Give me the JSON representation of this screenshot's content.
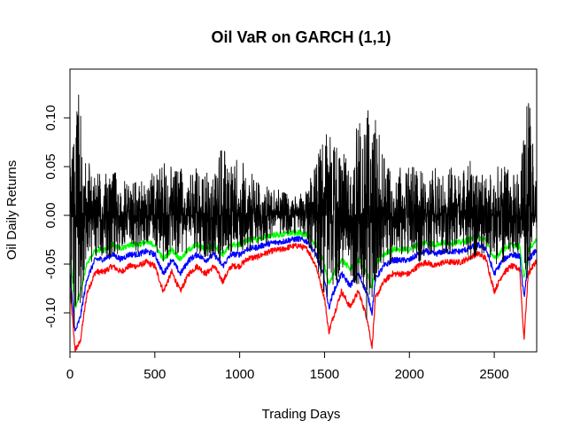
{
  "chart_data": {
    "type": "line",
    "title": "Oil VaR on GARCH (1,1)",
    "xlabel": "Trading Days",
    "ylabel": "Oil Daily Returns",
    "xlim": [
      0,
      2750
    ],
    "ylim": [
      -0.14,
      0.15
    ],
    "x_ticks": [
      0,
      500,
      1000,
      1500,
      2000,
      2500
    ],
    "x_tick_labels": [
      "0",
      "500",
      "1000",
      "1500",
      "2000",
      "2500"
    ],
    "y_ticks": [
      -0.1,
      -0.05,
      0.0,
      0.05,
      0.1
    ],
    "y_tick_labels": [
      "-0.10",
      "-0.05",
      "0.00",
      "0.05",
      "0.10"
    ],
    "grid": false,
    "legend": "none",
    "n_observations": 2750,
    "series": [
      {
        "role": "returns",
        "color": "#000000",
        "x": [
          0,
          50,
          100,
          150,
          200,
          250,
          300,
          350,
          400,
          450,
          500,
          550,
          600,
          650,
          700,
          750,
          800,
          850,
          900,
          950,
          1000,
          1050,
          1100,
          1150,
          1200,
          1250,
          1300,
          1350,
          1400,
          1450,
          1500,
          1550,
          1600,
          1650,
          1700,
          1750,
          1800,
          1850,
          1900,
          1950,
          2000,
          2050,
          2100,
          2150,
          2200,
          2250,
          2300,
          2350,
          2400,
          2450,
          2500,
          2550,
          2600,
          2650,
          2700,
          2750
        ],
        "values_high": [
          0.05,
          0.13,
          0.06,
          0.05,
          0.04,
          0.05,
          0.04,
          0.03,
          0.04,
          0.03,
          0.05,
          0.06,
          0.05,
          0.05,
          0.04,
          0.05,
          0.05,
          0.04,
          0.08,
          0.05,
          0.07,
          0.05,
          0.04,
          0.03,
          0.03,
          0.03,
          0.02,
          0.02,
          0.03,
          0.06,
          0.08,
          0.1,
          0.07,
          0.06,
          0.1,
          0.12,
          0.1,
          0.06,
          0.05,
          0.05,
          0.05,
          0.05,
          0.04,
          0.05,
          0.04,
          0.05,
          0.04,
          0.06,
          0.05,
          0.04,
          0.05,
          0.06,
          0.05,
          0.04,
          0.13,
          0.03
        ],
        "values_low": [
          -0.12,
          -0.11,
          -0.05,
          -0.05,
          -0.04,
          -0.05,
          -0.04,
          -0.03,
          -0.04,
          -0.03,
          -0.04,
          -0.05,
          -0.04,
          -0.04,
          -0.04,
          -0.04,
          -0.05,
          -0.04,
          -0.05,
          -0.04,
          -0.04,
          -0.04,
          -0.03,
          -0.03,
          -0.02,
          -0.02,
          -0.02,
          -0.02,
          -0.03,
          -0.05,
          -0.09,
          -0.08,
          -0.06,
          -0.06,
          -0.08,
          -0.11,
          -0.07,
          -0.05,
          -0.05,
          -0.04,
          -0.05,
          -0.05,
          -0.04,
          -0.04,
          -0.04,
          -0.04,
          -0.03,
          -0.05,
          -0.04,
          -0.04,
          -0.05,
          -0.05,
          -0.04,
          -0.04,
          -0.07,
          -0.02
        ]
      },
      {
        "role": "var-upper",
        "color": "#00ff00",
        "x": [
          0,
          30,
          60,
          100,
          150,
          200,
          250,
          300,
          350,
          400,
          450,
          500,
          550,
          600,
          650,
          700,
          750,
          800,
          850,
          900,
          950,
          1000,
          1050,
          1100,
          1150,
          1200,
          1250,
          1300,
          1350,
          1400,
          1450,
          1500,
          1525,
          1550,
          1600,
          1650,
          1700,
          1750,
          1780,
          1800,
          1850,
          1900,
          1950,
          2000,
          2050,
          2100,
          2150,
          2200,
          2250,
          2300,
          2350,
          2400,
          2450,
          2500,
          2550,
          2600,
          2650,
          2675,
          2700,
          2750
        ],
        "values": [
          -0.04,
          -0.095,
          -0.08,
          -0.05,
          -0.035,
          -0.035,
          -0.03,
          -0.035,
          -0.03,
          -0.03,
          -0.028,
          -0.03,
          -0.045,
          -0.035,
          -0.045,
          -0.035,
          -0.03,
          -0.035,
          -0.03,
          -0.04,
          -0.03,
          -0.03,
          -0.025,
          -0.025,
          -0.022,
          -0.02,
          -0.02,
          -0.018,
          -0.018,
          -0.02,
          -0.03,
          -0.05,
          -0.072,
          -0.06,
          -0.045,
          -0.055,
          -0.045,
          -0.06,
          -0.075,
          -0.05,
          -0.04,
          -0.035,
          -0.035,
          -0.035,
          -0.03,
          -0.028,
          -0.03,
          -0.028,
          -0.028,
          -0.028,
          -0.025,
          -0.022,
          -0.025,
          -0.045,
          -0.035,
          -0.03,
          -0.032,
          -0.065,
          -0.035,
          -0.025
        ]
      },
      {
        "role": "var-middle",
        "color": "#0000ff",
        "x": [
          0,
          30,
          60,
          100,
          150,
          200,
          250,
          300,
          350,
          400,
          450,
          500,
          550,
          600,
          650,
          700,
          750,
          800,
          850,
          900,
          950,
          1000,
          1050,
          1100,
          1150,
          1200,
          1250,
          1300,
          1350,
          1400,
          1450,
          1500,
          1525,
          1550,
          1600,
          1650,
          1700,
          1750,
          1780,
          1800,
          1850,
          1900,
          1950,
          2000,
          2050,
          2100,
          2150,
          2200,
          2250,
          2300,
          2350,
          2400,
          2450,
          2500,
          2550,
          2600,
          2650,
          2675,
          2700,
          2750
        ],
        "values": [
          -0.06,
          -0.12,
          -0.105,
          -0.065,
          -0.045,
          -0.045,
          -0.04,
          -0.045,
          -0.04,
          -0.04,
          -0.037,
          -0.04,
          -0.06,
          -0.045,
          -0.06,
          -0.046,
          -0.04,
          -0.046,
          -0.04,
          -0.052,
          -0.04,
          -0.04,
          -0.034,
          -0.033,
          -0.03,
          -0.028,
          -0.027,
          -0.025,
          -0.024,
          -0.027,
          -0.04,
          -0.065,
          -0.095,
          -0.08,
          -0.06,
          -0.072,
          -0.06,
          -0.08,
          -0.1,
          -0.065,
          -0.052,
          -0.046,
          -0.046,
          -0.046,
          -0.04,
          -0.037,
          -0.04,
          -0.037,
          -0.037,
          -0.037,
          -0.034,
          -0.03,
          -0.034,
          -0.06,
          -0.046,
          -0.04,
          -0.042,
          -0.085,
          -0.046,
          -0.035
        ]
      },
      {
        "role": "var-lower",
        "color": "#ff0000",
        "x": [
          0,
          30,
          60,
          100,
          150,
          200,
          250,
          300,
          350,
          400,
          450,
          500,
          550,
          600,
          650,
          700,
          750,
          800,
          850,
          900,
          950,
          1000,
          1050,
          1100,
          1150,
          1200,
          1250,
          1300,
          1350,
          1400,
          1450,
          1500,
          1525,
          1550,
          1600,
          1650,
          1700,
          1750,
          1780,
          1800,
          1850,
          1900,
          1950,
          2000,
          2050,
          2100,
          2150,
          2200,
          2250,
          2300,
          2350,
          2400,
          2450,
          2500,
          2550,
          2600,
          2650,
          2675,
          2700,
          2750
        ],
        "values": [
          -0.075,
          -0.138,
          -0.13,
          -0.08,
          -0.058,
          -0.058,
          -0.052,
          -0.058,
          -0.052,
          -0.052,
          -0.048,
          -0.052,
          -0.078,
          -0.058,
          -0.078,
          -0.06,
          -0.052,
          -0.06,
          -0.052,
          -0.068,
          -0.052,
          -0.052,
          -0.044,
          -0.043,
          -0.039,
          -0.036,
          -0.035,
          -0.032,
          -0.031,
          -0.035,
          -0.052,
          -0.085,
          -0.12,
          -0.105,
          -0.078,
          -0.094,
          -0.078,
          -0.105,
          -0.135,
          -0.085,
          -0.068,
          -0.06,
          -0.06,
          -0.06,
          -0.052,
          -0.048,
          -0.052,
          -0.048,
          -0.048,
          -0.048,
          -0.044,
          -0.039,
          -0.044,
          -0.078,
          -0.06,
          -0.052,
          -0.055,
          -0.128,
          -0.06,
          -0.046
        ]
      }
    ]
  }
}
